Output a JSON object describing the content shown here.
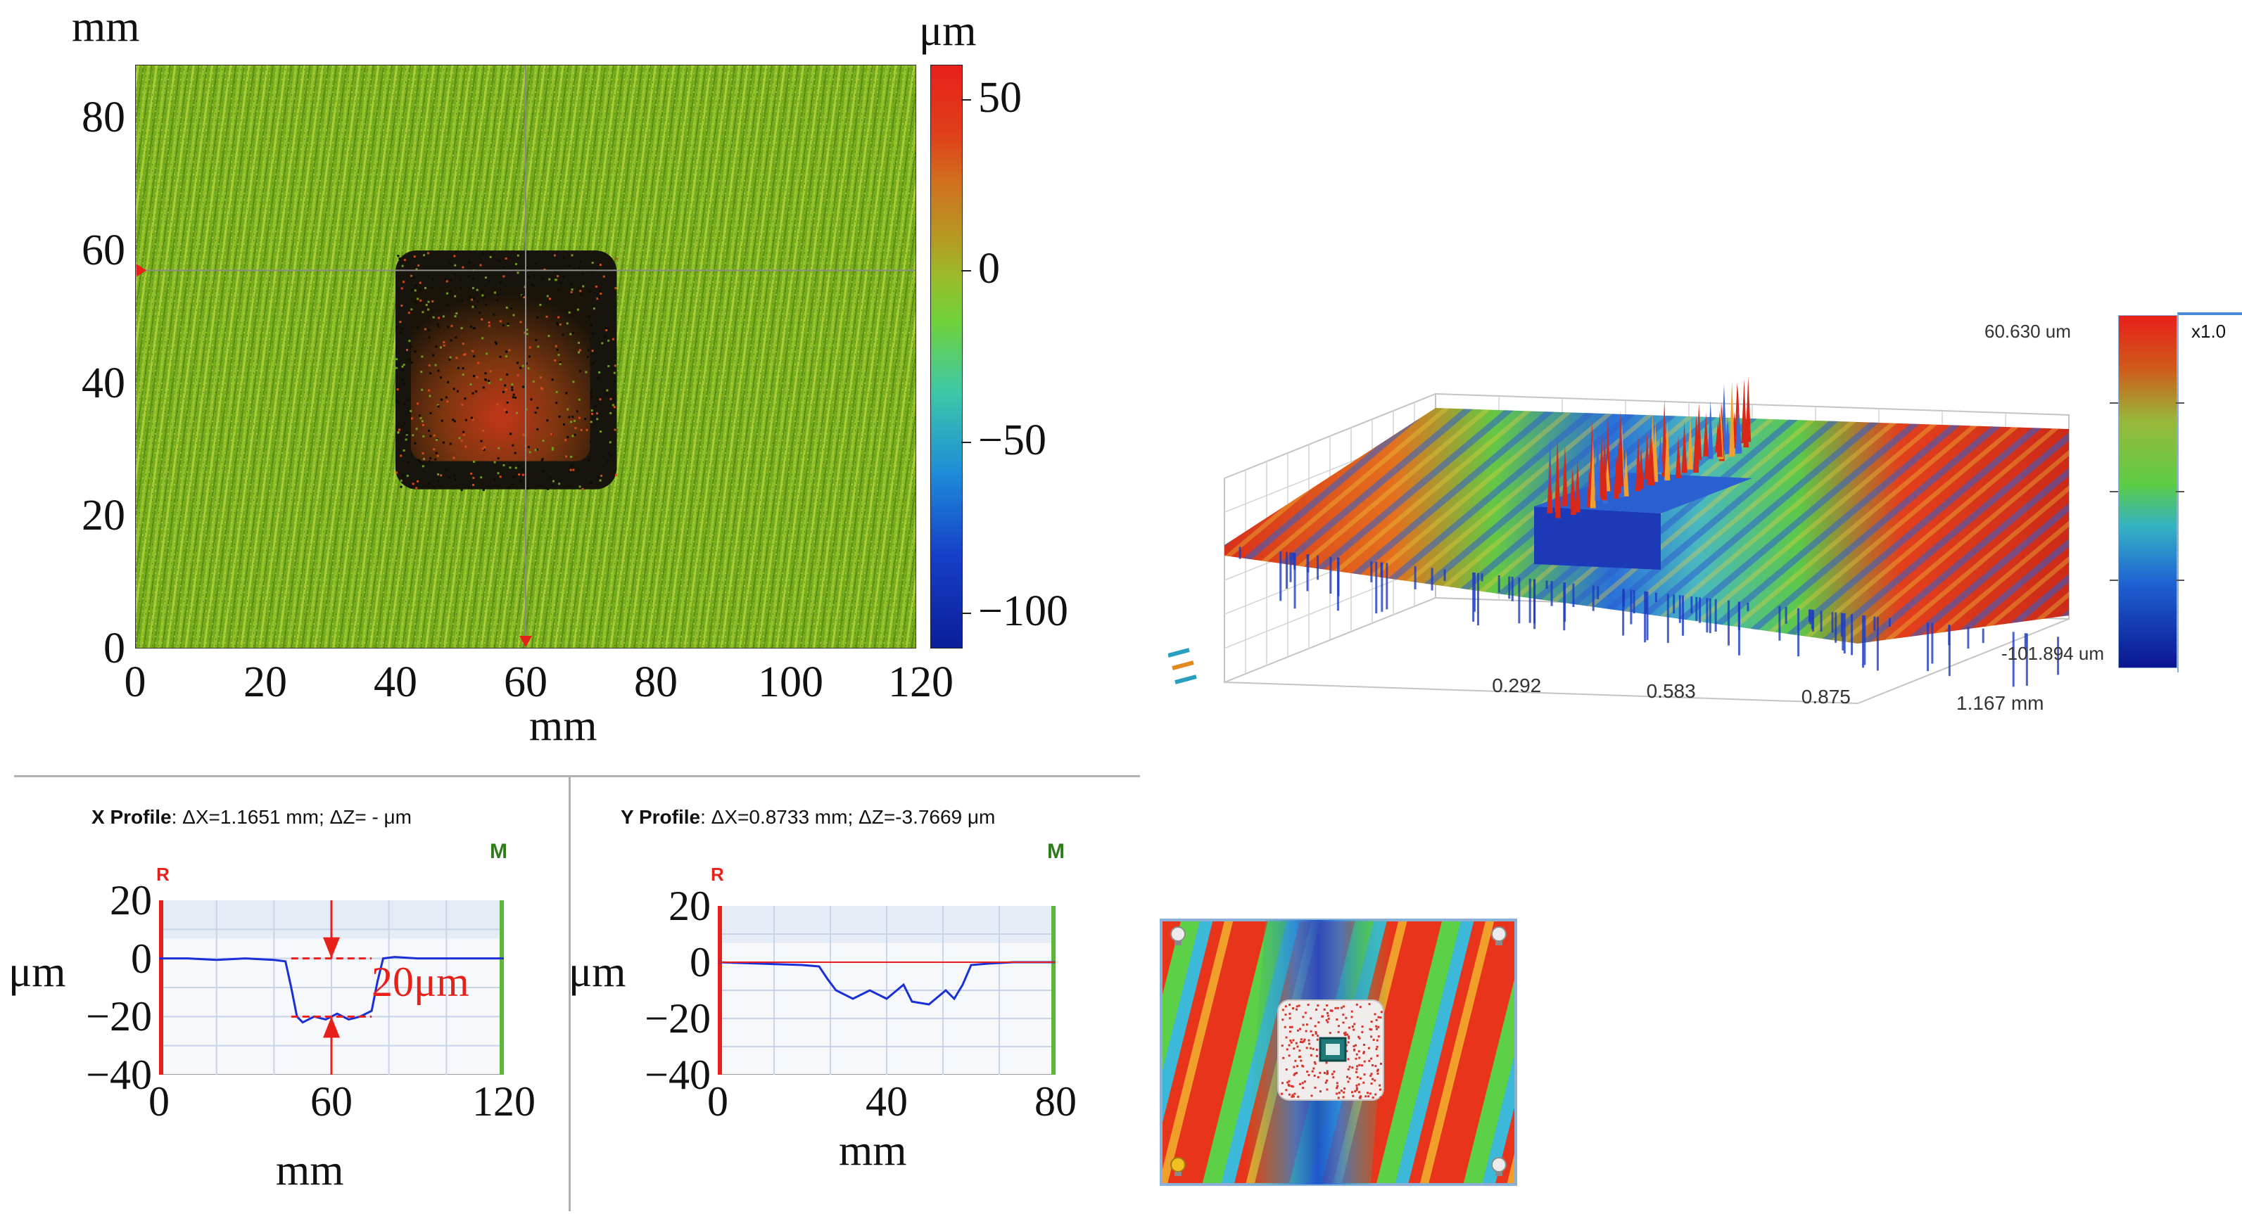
{
  "colors": {
    "high": "#e0261a",
    "mid": "#6fd23a",
    "low": "#0b1e9a",
    "surface_base": "#7cb61f",
    "profile_line": "#1a2fd6",
    "annotation": "#e8201a",
    "grid": "#c8d4e8",
    "marker_m": "#2e7d1a"
  },
  "chart_data": [
    {
      "id": "height-map-2d",
      "type": "heatmap",
      "title": "",
      "xlabel": "mm",
      "ylabel": "mm",
      "xlim": [
        0,
        120
      ],
      "ylim": [
        0,
        88
      ],
      "xticks": [
        "0",
        "20",
        "40",
        "60",
        "80",
        "100",
        "120"
      ],
      "yticks": [
        "0",
        "20",
        "40",
        "60",
        "80"
      ],
      "xtick_values": [
        0,
        20,
        40,
        60,
        80,
        100,
        120
      ],
      "ytick_values": [
        0,
        20,
        40,
        60,
        80
      ],
      "crosshair": {
        "x": 60,
        "y": 57
      },
      "indent_region": {
        "x_from": 40,
        "x_to": 74,
        "y_from": 24,
        "y_to": 60
      },
      "colorbar": {
        "unit": "μm",
        "ticks": [
          "50",
          "0",
          "−50",
          "−100"
        ],
        "tick_values": [
          50,
          0,
          -50,
          -100
        ],
        "range": [
          -110,
          60
        ]
      }
    },
    {
      "id": "surface-3d",
      "type": "area",
      "max_label": "60.630 um",
      "min_label": "-101.894 um",
      "scale_label": "x1.0",
      "xticks": [
        "0.292",
        "0.583",
        "0.875",
        "1.167 mm"
      ],
      "xtick_values": [
        0.292,
        0.583,
        0.875,
        1.167
      ]
    },
    {
      "id": "x-profile",
      "type": "line",
      "title_bold": "X Profile",
      "title_rest": ": ΔX=1.1651 mm; ΔZ= -  μm",
      "marker_r": "R",
      "marker_m": "M",
      "xlabel": "mm",
      "ylabel": "μm",
      "xlim": [
        0,
        120
      ],
      "ylim": [
        -40,
        20
      ],
      "xticks": [
        "0",
        "60",
        "120"
      ],
      "xtick_values": [
        0,
        60,
        120
      ],
      "yticks": [
        "20",
        "0",
        "−20",
        "−40"
      ],
      "ytick_values": [
        20,
        0,
        -20,
        -40
      ],
      "annotation": "20μm",
      "x": [
        0,
        10,
        20,
        30,
        40,
        44,
        46,
        48,
        50,
        54,
        58,
        62,
        66,
        70,
        74,
        76,
        78,
        82,
        90,
        100,
        110,
        120
      ],
      "y": [
        0,
        0,
        -0.5,
        0,
        -0.5,
        -1,
        -10,
        -20,
        -22,
        -20,
        -21,
        -19,
        -21,
        -20,
        -18,
        -8,
        0,
        0.5,
        0,
        0,
        0,
        0
      ]
    },
    {
      "id": "y-profile",
      "type": "line",
      "title_bold": "Y Profile",
      "title_rest": ": ΔX=0.8733 mm; ΔZ=-3.7669 μm",
      "marker_r": "R",
      "marker_m": "M",
      "xlabel": "mm",
      "ylabel": "μm",
      "xlim": [
        0,
        80
      ],
      "ylim": [
        -40,
        20
      ],
      "xticks": [
        "0",
        "40",
        "80"
      ],
      "xtick_values": [
        0,
        40,
        80
      ],
      "yticks": [
        "20",
        "0",
        "−20",
        "−40"
      ],
      "ytick_values": [
        20,
        0,
        -20,
        -40
      ],
      "x": [
        0,
        10,
        20,
        24,
        26,
        28,
        32,
        36,
        40,
        44,
        46,
        50,
        54,
        56,
        58,
        60,
        64,
        70,
        80
      ],
      "y": [
        0,
        -0.5,
        -1,
        -1.5,
        -6,
        -10,
        -13,
        -10,
        -13,
        -8,
        -14,
        -15,
        -10,
        -13,
        -8,
        -1,
        -0.5,
        0,
        0
      ]
    }
  ]
}
